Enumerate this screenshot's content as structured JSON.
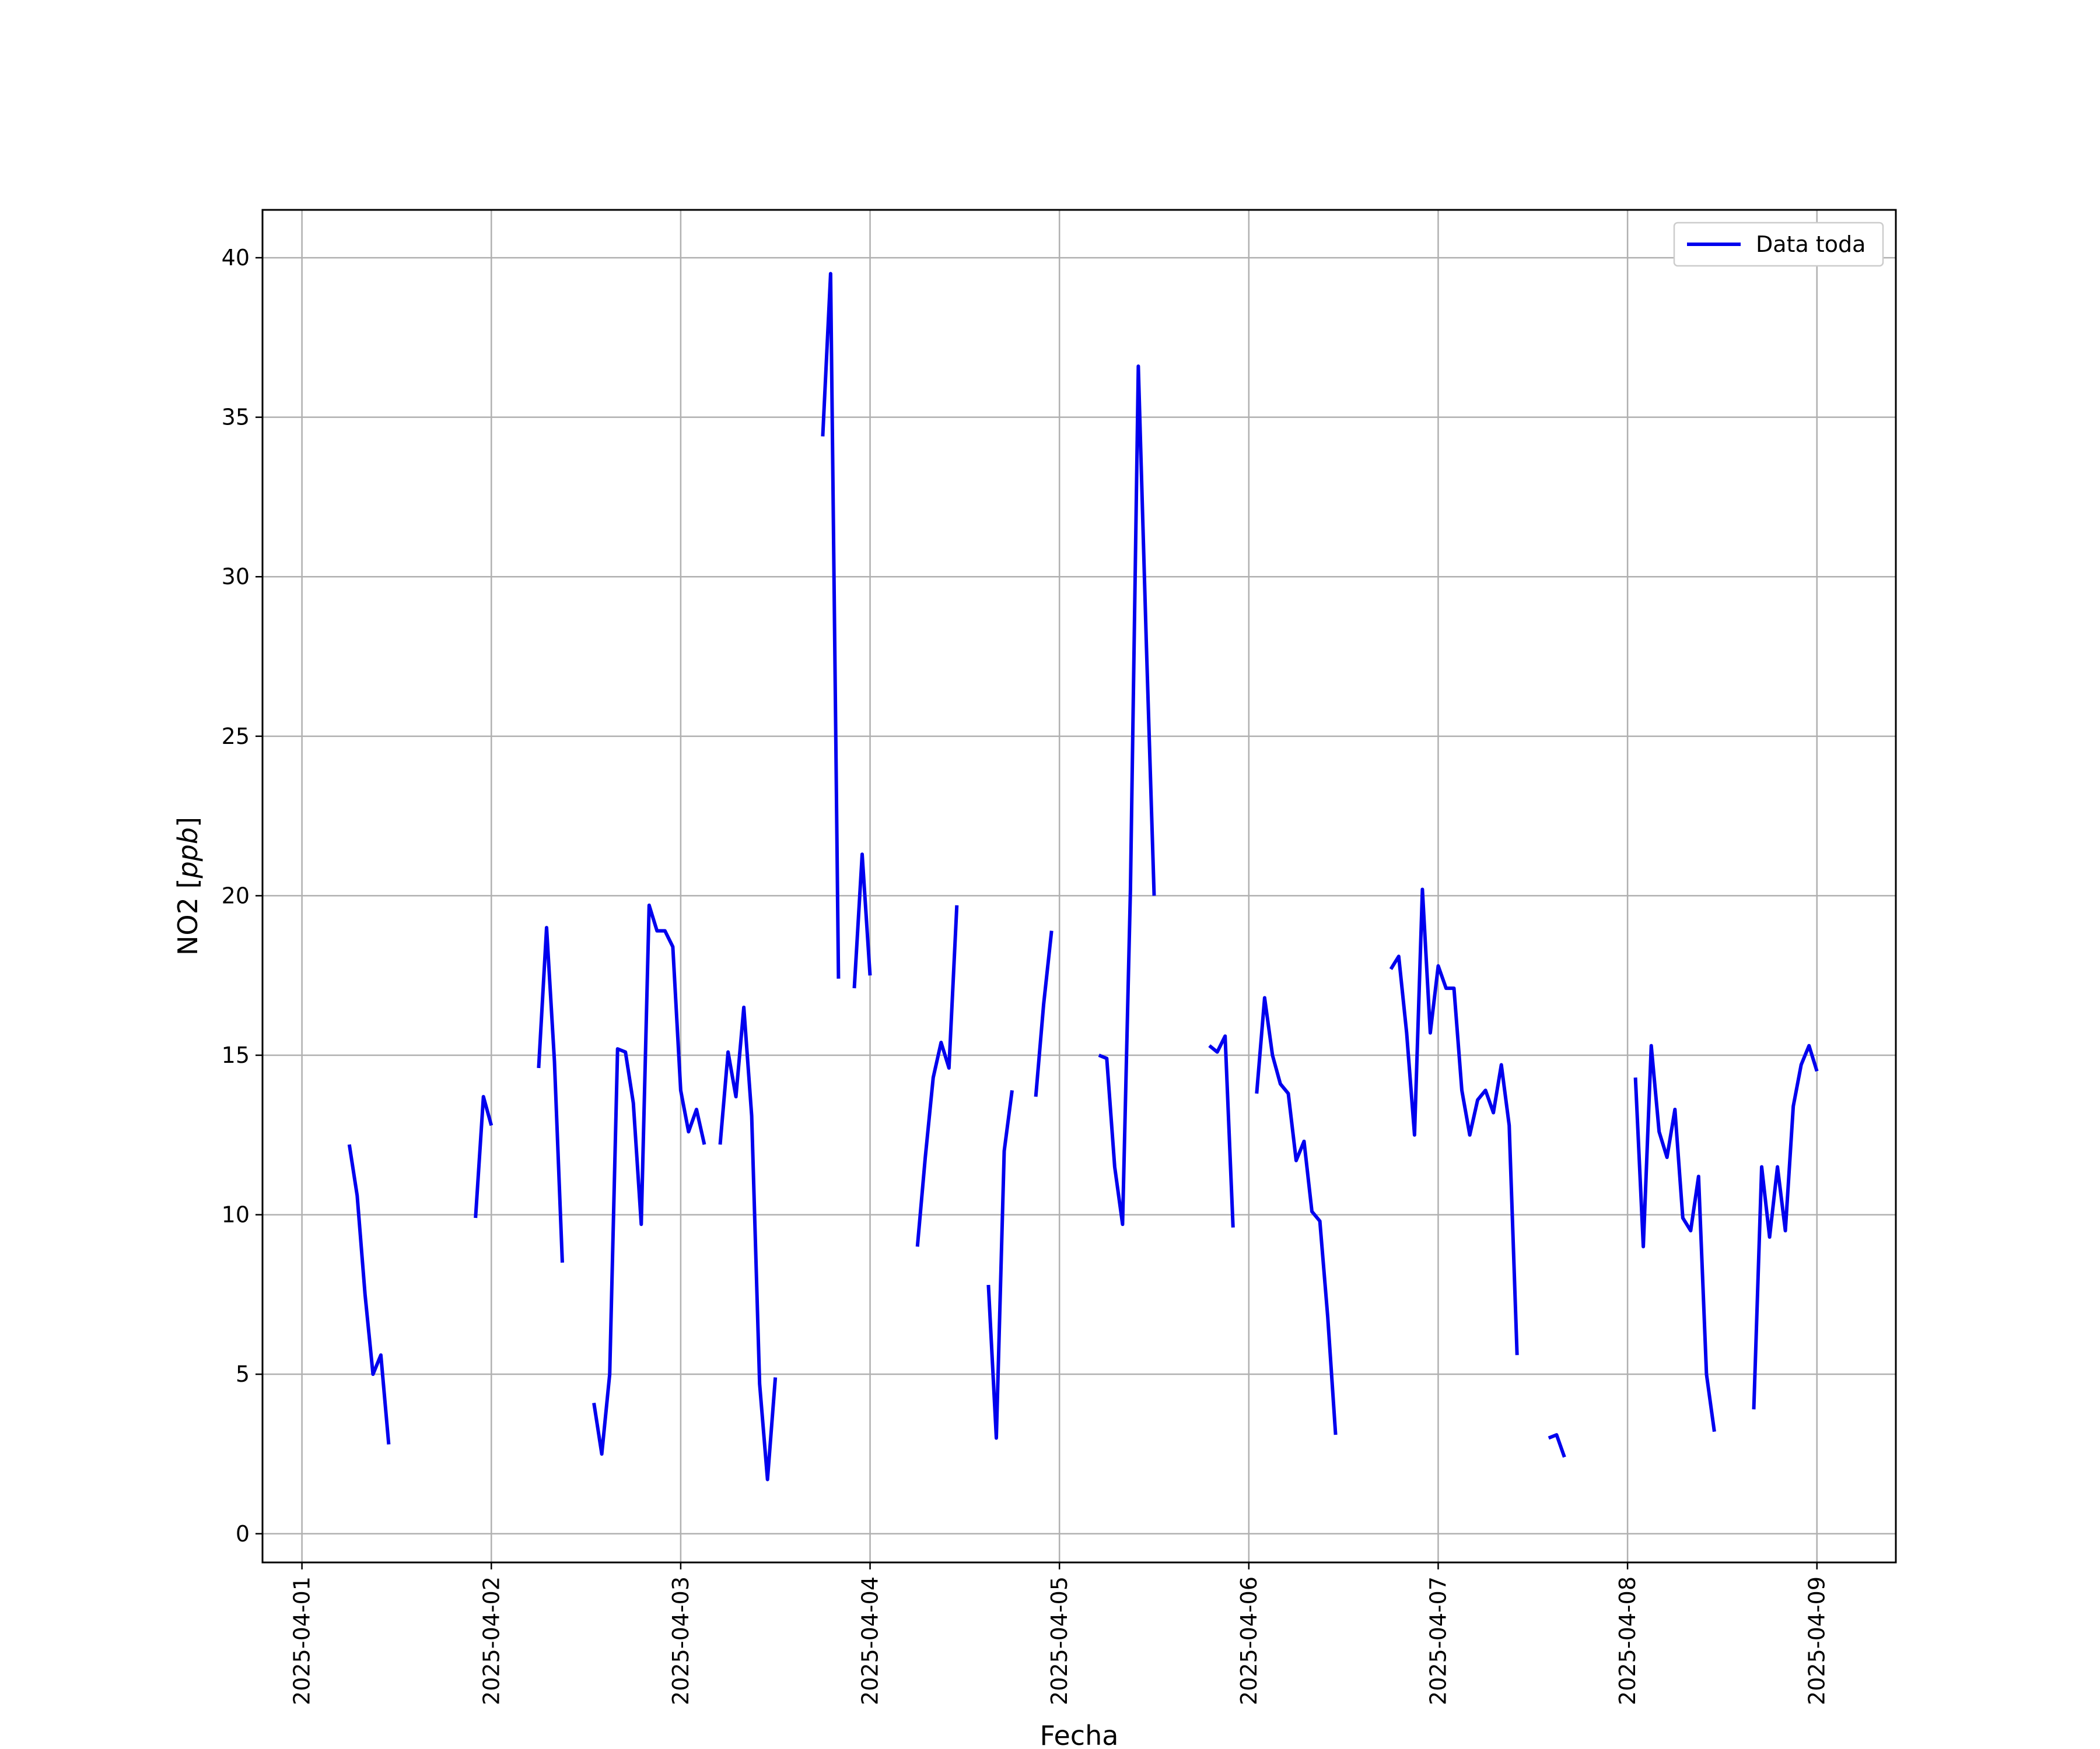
{
  "chart_data": {
    "type": "line",
    "title": "",
    "xlabel": "Fecha",
    "ylabel": "NO2 [ppb]",
    "ylabel_main": "NO2 ",
    "ylabel_unit": "ppb",
    "xlim": [
      "2025-03-31T19:00",
      "2025-04-09T10:00"
    ],
    "ylim": [
      -0.9,
      41.5
    ],
    "yticks": [
      0,
      5,
      10,
      15,
      20,
      25,
      30,
      35,
      40
    ],
    "xticks": [
      "2025-04-01",
      "2025-04-02",
      "2025-04-03",
      "2025-04-04",
      "2025-04-05",
      "2025-04-06",
      "2025-04-07",
      "2025-04-08",
      "2025-04-09"
    ],
    "grid": true,
    "legend_position": "upper-right",
    "line_color": "#0000ee",
    "series": [
      {
        "name": "Data toda",
        "segments": [
          [
            [
              "2025-04-01T06:00",
              12.2
            ],
            [
              "2025-04-01T07:00",
              10.6
            ],
            [
              "2025-04-01T08:00",
              7.5
            ],
            [
              "2025-04-01T09:00",
              5.0
            ],
            [
              "2025-04-01T10:00",
              5.6
            ],
            [
              "2025-04-01T11:00",
              2.8
            ]
          ],
          [
            [
              "2025-04-01T22:00",
              9.9
            ],
            [
              "2025-04-01T23:00",
              13.7
            ],
            [
              "2025-04-02T00:00",
              12.8
            ]
          ],
          [
            [
              "2025-04-02T06:00",
              14.6
            ],
            [
              "2025-04-02T07:00",
              19.0
            ],
            [
              "2025-04-02T08:00",
              14.8
            ],
            [
              "2025-04-02T09:00",
              8.5
            ]
          ],
          [
            [
              "2025-04-02T13:00",
              4.1
            ],
            [
              "2025-04-02T14:00",
              2.5
            ],
            [
              "2025-04-02T15:00",
              5.0
            ],
            [
              "2025-04-02T16:00",
              15.2
            ],
            [
              "2025-04-02T17:00",
              15.1
            ],
            [
              "2025-04-02T18:00",
              13.5
            ],
            [
              "2025-04-02T19:00",
              9.7
            ],
            [
              "2025-04-02T20:00",
              19.7
            ],
            [
              "2025-04-02T21:00",
              18.9
            ],
            [
              "2025-04-02T22:00",
              18.9
            ],
            [
              "2025-04-02T23:00",
              18.4
            ],
            [
              "2025-04-03T00:00",
              13.9
            ],
            [
              "2025-04-03T01:00",
              12.6
            ],
            [
              "2025-04-03T02:00",
              13.3
            ],
            [
              "2025-04-03T03:00",
              12.2
            ]
          ],
          [
            [
              "2025-04-03T05:00",
              12.2
            ],
            [
              "2025-04-03T06:00",
              15.1
            ],
            [
              "2025-04-03T07:00",
              13.7
            ],
            [
              "2025-04-03T08:00",
              16.5
            ],
            [
              "2025-04-03T09:00",
              13.1
            ],
            [
              "2025-04-03T10:00",
              4.7
            ],
            [
              "2025-04-03T11:00",
              1.7
            ],
            [
              "2025-04-03T12:00",
              4.9
            ]
          ],
          [
            [
              "2025-04-03T18:00",
              34.4
            ],
            [
              "2025-04-03T19:00",
              39.5
            ],
            [
              "2025-04-03T20:00",
              17.4
            ]
          ],
          [
            [
              "2025-04-03T22:00",
              17.1
            ],
            [
              "2025-04-03T23:00",
              21.3
            ],
            [
              "2025-04-04T00:00",
              17.5
            ]
          ],
          [
            [
              "2025-04-04T06:00",
              9.0
            ],
            [
              "2025-04-04T07:00",
              11.8
            ],
            [
              "2025-04-04T08:00",
              14.3
            ],
            [
              "2025-04-04T09:00",
              15.4
            ],
            [
              "2025-04-04T10:00",
              14.6
            ],
            [
              "2025-04-04T11:00",
              19.7
            ]
          ],
          [
            [
              "2025-04-04T15:00",
              7.8
            ],
            [
              "2025-04-04T16:00",
              3.0
            ],
            [
              "2025-04-04T17:00",
              12.0
            ],
            [
              "2025-04-04T18:00",
              13.9
            ]
          ],
          [
            [
              "2025-04-04T21:00",
              13.7
            ],
            [
              "2025-04-04T22:00",
              16.6
            ],
            [
              "2025-04-04T23:00",
              18.9
            ]
          ],
          [
            [
              "2025-04-05T05:00",
              15.0
            ],
            [
              "2025-04-05T06:00",
              14.9
            ],
            [
              "2025-04-05T07:00",
              11.5
            ],
            [
              "2025-04-05T08:00",
              9.7
            ],
            [
              "2025-04-05T09:00",
              20.2
            ],
            [
              "2025-04-05T10:00",
              36.6
            ],
            [
              "2025-04-05T11:00",
              28.0
            ],
            [
              "2025-04-05T12:00",
              20.0
            ]
          ],
          [
            [
              "2025-04-05T19:00",
              15.3
            ],
            [
              "2025-04-05T20:00",
              15.1
            ],
            [
              "2025-04-05T21:00",
              15.6
            ],
            [
              "2025-04-05T22:00",
              9.6
            ]
          ],
          [
            [
              "2025-04-06T01:00",
              13.8
            ],
            [
              "2025-04-06T02:00",
              16.8
            ],
            [
              "2025-04-06T03:00",
              15.0
            ],
            [
              "2025-04-06T04:00",
              14.1
            ],
            [
              "2025-04-06T05:00",
              13.8
            ],
            [
              "2025-04-06T06:00",
              11.7
            ],
            [
              "2025-04-06T07:00",
              12.3
            ],
            [
              "2025-04-06T08:00",
              10.1
            ],
            [
              "2025-04-06T09:00",
              9.8
            ],
            [
              "2025-04-06T10:00",
              6.8
            ],
            [
              "2025-04-06T11:00",
              3.1
            ]
          ],
          [
            [
              "2025-04-06T18:00",
              17.7
            ],
            [
              "2025-04-06T19:00",
              18.1
            ],
            [
              "2025-04-06T20:00",
              15.7
            ],
            [
              "2025-04-06T21:00",
              12.5
            ],
            [
              "2025-04-06T22:00",
              20.2
            ],
            [
              "2025-04-06T23:00",
              15.7
            ],
            [
              "2025-04-07T00:00",
              17.8
            ],
            [
              "2025-04-07T01:00",
              17.1
            ],
            [
              "2025-04-07T02:00",
              17.1
            ],
            [
              "2025-04-07T03:00",
              13.9
            ],
            [
              "2025-04-07T04:00",
              12.5
            ],
            [
              "2025-04-07T05:00",
              13.6
            ],
            [
              "2025-04-07T06:00",
              13.9
            ],
            [
              "2025-04-07T07:00",
              13.2
            ],
            [
              "2025-04-07T08:00",
              14.7
            ],
            [
              "2025-04-07T09:00",
              12.8
            ],
            [
              "2025-04-07T10:00",
              5.6
            ]
          ],
          [
            [
              "2025-04-07T14:00",
              3.0
            ],
            [
              "2025-04-07T15:00",
              3.1
            ],
            [
              "2025-04-07T16:00",
              2.4
            ]
          ],
          [
            [
              "2025-04-08T01:00",
              14.3
            ],
            [
              "2025-04-08T02:00",
              9.0
            ],
            [
              "2025-04-08T03:00",
              15.3
            ],
            [
              "2025-04-08T04:00",
              12.6
            ],
            [
              "2025-04-08T05:00",
              11.8
            ],
            [
              "2025-04-08T06:00",
              13.3
            ],
            [
              "2025-04-08T07:00",
              9.9
            ],
            [
              "2025-04-08T08:00",
              9.5
            ],
            [
              "2025-04-08T09:00",
              11.2
            ],
            [
              "2025-04-08T10:00",
              5.0
            ],
            [
              "2025-04-08T11:00",
              3.2
            ]
          ],
          [
            [
              "2025-04-08T16:00",
              3.9
            ],
            [
              "2025-04-08T17:00",
              11.5
            ],
            [
              "2025-04-08T18:00",
              9.3
            ],
            [
              "2025-04-08T19:00",
              11.5
            ],
            [
              "2025-04-08T20:00",
              9.5
            ],
            [
              "2025-04-08T21:00",
              13.4
            ],
            [
              "2025-04-08T22:00",
              14.7
            ],
            [
              "2025-04-08T23:00",
              15.3
            ],
            [
              "2025-04-09T00:00",
              14.5
            ]
          ]
        ]
      }
    ]
  }
}
